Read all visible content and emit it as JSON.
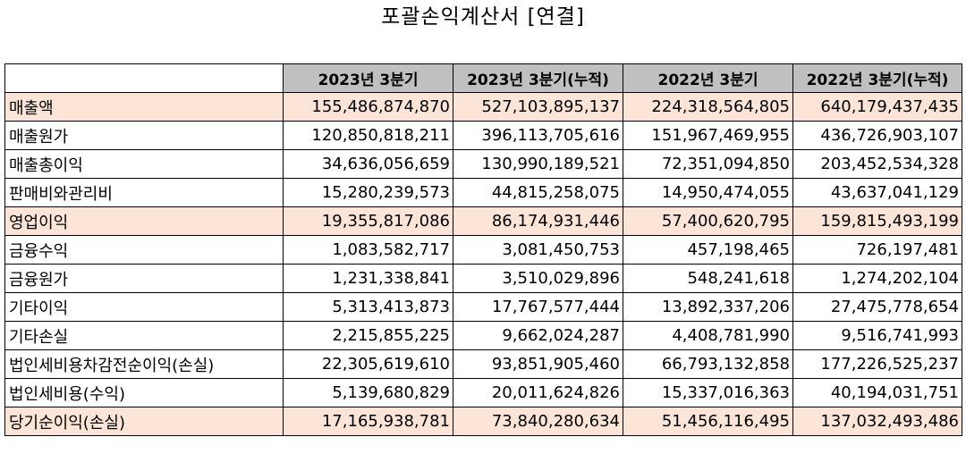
{
  "title": "포괄손익계산서 [연결]",
  "columns": [
    "2023년 3분기",
    "2023년 3분기(누적)",
    "2022년 3분기",
    "2022년 3분기(누적)"
  ],
  "rows": [
    {
      "label": "매출액",
      "highlight": true,
      "values": [
        "155,486,874,870",
        "527,103,895,137",
        "224,318,564,805",
        "640,179,437,435"
      ]
    },
    {
      "label": "매출원가",
      "highlight": false,
      "values": [
        "120,850,818,211",
        "396,113,705,616",
        "151,967,469,955",
        "436,726,903,107"
      ]
    },
    {
      "label": "매출총이익",
      "highlight": false,
      "values": [
        "34,636,056,659",
        "130,990,189,521",
        "72,351,094,850",
        "203,452,534,328"
      ]
    },
    {
      "label": "판매비와관리비",
      "highlight": false,
      "values": [
        "15,280,239,573",
        "44,815,258,075",
        "14,950,474,055",
        "43,637,041,129"
      ]
    },
    {
      "label": "영업이익",
      "highlight": true,
      "values": [
        "19,355,817,086",
        "86,174,931,446",
        "57,400,620,795",
        "159,815,493,199"
      ]
    },
    {
      "label": "금융수익",
      "highlight": false,
      "values": [
        "1,083,582,717",
        "3,081,450,753",
        "457,198,465",
        "726,197,481"
      ]
    },
    {
      "label": "금융원가",
      "highlight": false,
      "values": [
        "1,231,338,841",
        "3,510,029,896",
        "548,241,618",
        "1,274,202,104"
      ]
    },
    {
      "label": "기타이익",
      "highlight": false,
      "values": [
        "5,313,413,873",
        "17,767,577,444",
        "13,892,337,206",
        "27,475,778,654"
      ]
    },
    {
      "label": "기타손실",
      "highlight": false,
      "values": [
        "2,215,855,225",
        "9,662,024,287",
        "4,408,781,990",
        "9,516,741,993"
      ]
    },
    {
      "label": "법인세비용차감전순이익(손실)",
      "highlight": false,
      "values": [
        "22,305,619,610",
        "93,851,905,460",
        "66,793,132,858",
        "177,226,525,237"
      ]
    },
    {
      "label": "법인세비용(수익)",
      "highlight": false,
      "values": [
        "5,139,680,829",
        "20,011,624,826",
        "15,337,016,363",
        "40,194,031,751"
      ]
    },
    {
      "label": "당기순이익(손실)",
      "highlight": true,
      "values": [
        "17,165,938,781",
        "73,840,280,634",
        "51,456,116,495",
        "137,032,493,486"
      ]
    }
  ],
  "colors": {
    "header_bg": "#c0c0c0",
    "highlight_bg": "#fce4d6",
    "border": "#000000"
  }
}
